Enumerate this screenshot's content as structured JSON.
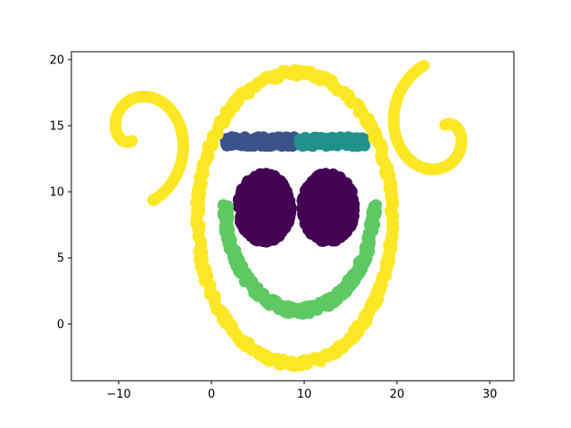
{
  "chart_data": {
    "type": "scatter",
    "title": "",
    "xlabel": "",
    "ylabel": "",
    "xlim": [
      -15.1,
      32.6
    ],
    "ylim": [
      -4.3,
      20.6
    ],
    "x_ticks": [
      -10,
      0,
      10,
      20,
      30
    ],
    "y_ticks": [
      0,
      5,
      10,
      15,
      20
    ],
    "x_tick_labels": [
      "−10",
      "0",
      "10",
      "20",
      "30"
    ],
    "y_tick_labels": [
      "0",
      "5",
      "10",
      "15",
      "20"
    ],
    "grid": false,
    "legend": "none",
    "series": [
      {
        "color": "#440154",
        "shape": "filled-ellipse",
        "blobs": [
          {
            "cx": 5.7,
            "cy": 8.8,
            "rx": 3.5,
            "ry": 3.2
          },
          {
            "cx": 12.6,
            "cy": 8.8,
            "rx": 3.5,
            "ry": 3.2
          }
        ]
      },
      {
        "color": "#3b528b",
        "shape": "horizontal-band",
        "x_range": [
          1.5,
          9.0
        ],
        "y": 13.8
      },
      {
        "color": "#21918c",
        "shape": "horizontal-band",
        "x_range": [
          9.5,
          16.5
        ],
        "y": 13.8
      },
      {
        "color": "#5ec962",
        "shape": "smile-arc",
        "center": [
          9.5,
          9.0
        ],
        "rx": 8.0,
        "ry": 8.0,
        "theta_range_deg": [
          180,
          360
        ]
      },
      {
        "color": "#fde725",
        "shape": "ring",
        "center": [
          9.0,
          8.0
        ],
        "rx": 10.5,
        "ry": 11.0
      },
      {
        "color": "#fde725",
        "shape": "left-spiral",
        "start": [
          -9.5,
          14.0
        ]
      },
      {
        "color": "#fde725",
        "shape": "right-spiral",
        "start": [
          26.7,
          14.5
        ]
      }
    ]
  }
}
